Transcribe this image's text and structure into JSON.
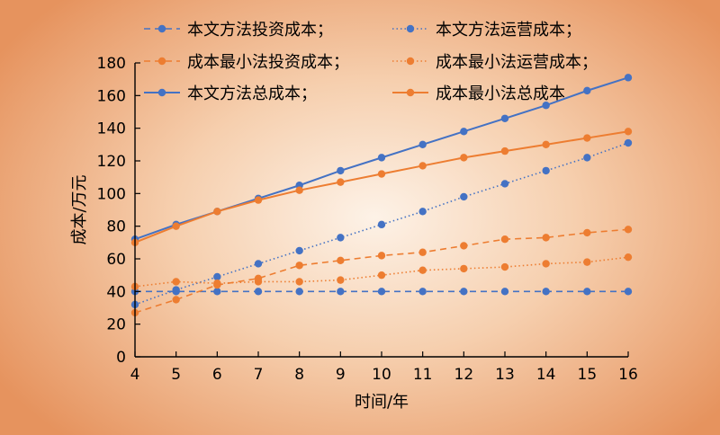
{
  "chart_data": {
    "type": "line",
    "xlabel": "时间/年",
    "ylabel": "成本/万元",
    "x": [
      4,
      5,
      6,
      7,
      8,
      9,
      10,
      11,
      12,
      13,
      14,
      15,
      16
    ],
    "xlim": [
      4,
      16
    ],
    "ylim": [
      0,
      180
    ],
    "yticks": [
      0,
      20,
      40,
      60,
      80,
      100,
      120,
      140,
      160,
      180
    ],
    "grid": false,
    "legend_position": "top-left",
    "series": [
      {
        "name": "本文方法投资成本；",
        "color": "#4472c4",
        "style": "dashed",
        "values": [
          40,
          40,
          40,
          40,
          40,
          40,
          40,
          40,
          40,
          40,
          40,
          40,
          40
        ]
      },
      {
        "name": "本文方法运营成本；",
        "color": "#4472c4",
        "style": "dotted",
        "values": [
          32,
          41,
          49,
          57,
          65,
          73,
          81,
          89,
          98,
          106,
          114,
          122,
          131
        ]
      },
      {
        "name": "成本最小法投资成本；",
        "color": "#ed7d31",
        "style": "dashed",
        "values": [
          27,
          35,
          44,
          48,
          56,
          59,
          62,
          64,
          68,
          72,
          73,
          76,
          78
        ]
      },
      {
        "name": "成本最小法运营成本；",
        "color": "#ed7d31",
        "style": "dotted",
        "values": [
          43,
          46,
          45,
          46,
          46,
          47,
          50,
          53,
          54,
          55,
          57,
          58,
          61
        ]
      },
      {
        "name": "本文方法总成本；",
        "color": "#4472c4",
        "style": "solid",
        "values": [
          72,
          81,
          89,
          97,
          105,
          114,
          122,
          130,
          138,
          146,
          154,
          163,
          171
        ]
      },
      {
        "name": "成本最小法总成本",
        "color": "#ed7d31",
        "style": "solid",
        "values": [
          70,
          80,
          89,
          96,
          102,
          107,
          112,
          117,
          122,
          126,
          130,
          134,
          138
        ]
      }
    ]
  }
}
